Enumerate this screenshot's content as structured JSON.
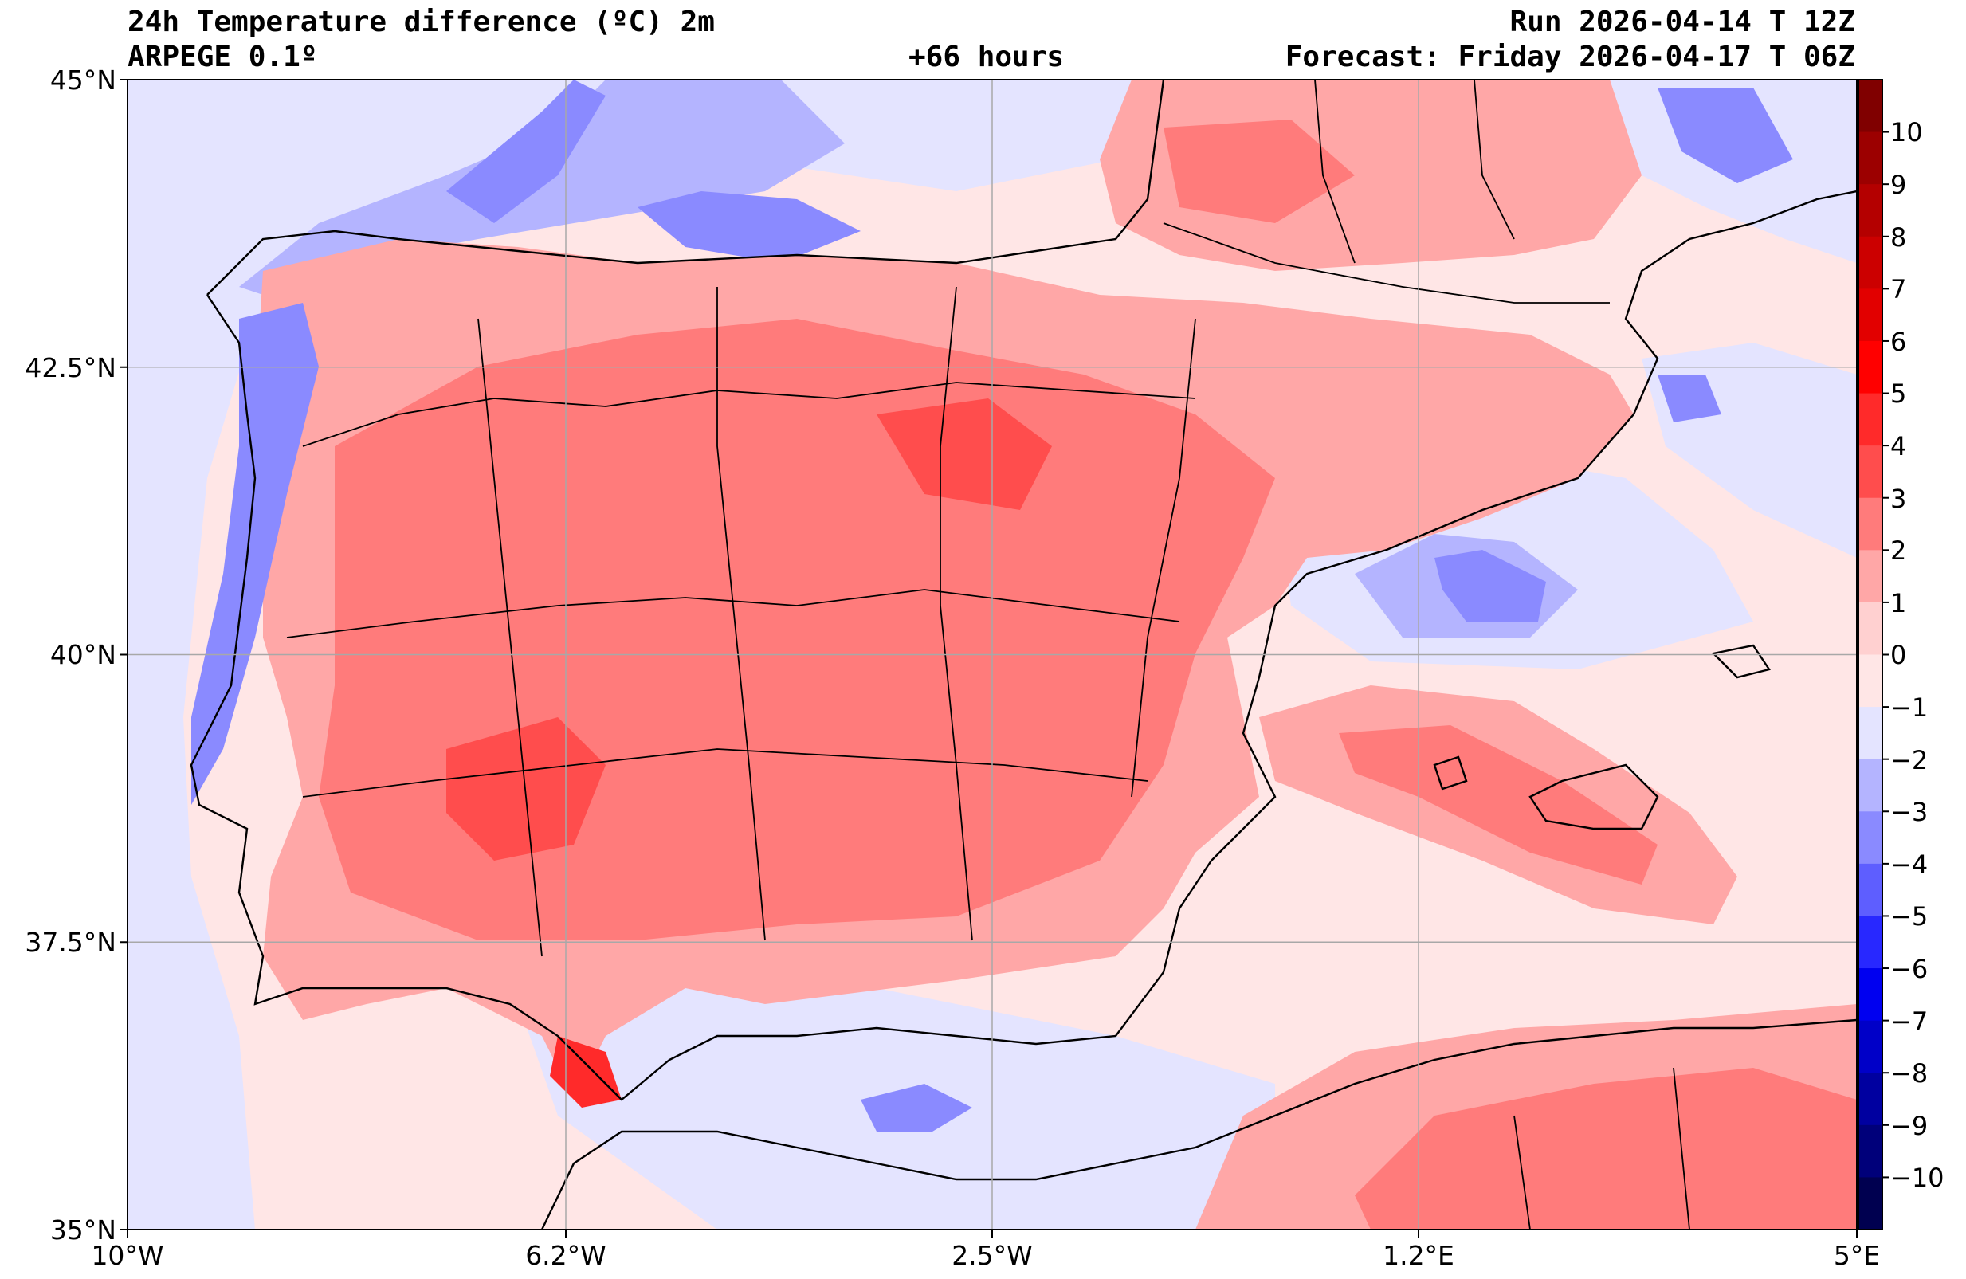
{
  "header": {
    "title": "24h Temperature difference (ºC) 2m",
    "model": "ARPEGE 0.1º",
    "lead": "+66 hours",
    "run": "Run 2026-04-14 T 12Z",
    "forecast": "Forecast: Friday 2026-04-17 T 06Z"
  },
  "map": {
    "lat_ticks": [
      "45°N",
      "42.5°N",
      "40°N",
      "37.5°N",
      "35°N"
    ],
    "lon_ticks": [
      "10°W",
      "6.2°W",
      "2.5°W",
      "1.2°E",
      "5°E"
    ],
    "gridlines": true
  },
  "colorbar": {
    "labels": [
      "10",
      "9",
      "8",
      "7",
      "6",
      "5",
      "4",
      "3",
      "2",
      "1",
      "0",
      "−1",
      "−2",
      "−3",
      "−4",
      "−5",
      "−6",
      "−7",
      "−8",
      "−9",
      "−10"
    ],
    "levels": [
      {
        "color": "#800000"
      },
      {
        "color": "#9c0000"
      },
      {
        "color": "#b40000"
      },
      {
        "color": "#cc0000"
      },
      {
        "color": "#e20000"
      },
      {
        "color": "#ff0000"
      },
      {
        "color": "#ff2a2a"
      },
      {
        "color": "#ff4d4d"
      },
      {
        "color": "#ff7b7b"
      },
      {
        "color": "#ffa7a7"
      },
      {
        "color": "#ffd0d0"
      },
      {
        "color": "#ffe6e6"
      },
      {
        "color": "#e4e4ff"
      },
      {
        "color": "#b4b4ff"
      },
      {
        "color": "#8a8aff"
      },
      {
        "color": "#5e5eff"
      },
      {
        "color": "#2828ff"
      },
      {
        "color": "#0000f0"
      },
      {
        "color": "#0000c8"
      },
      {
        "color": "#0000a0"
      },
      {
        "color": "#00007a"
      },
      {
        "color": "#000050"
      }
    ]
  }
}
